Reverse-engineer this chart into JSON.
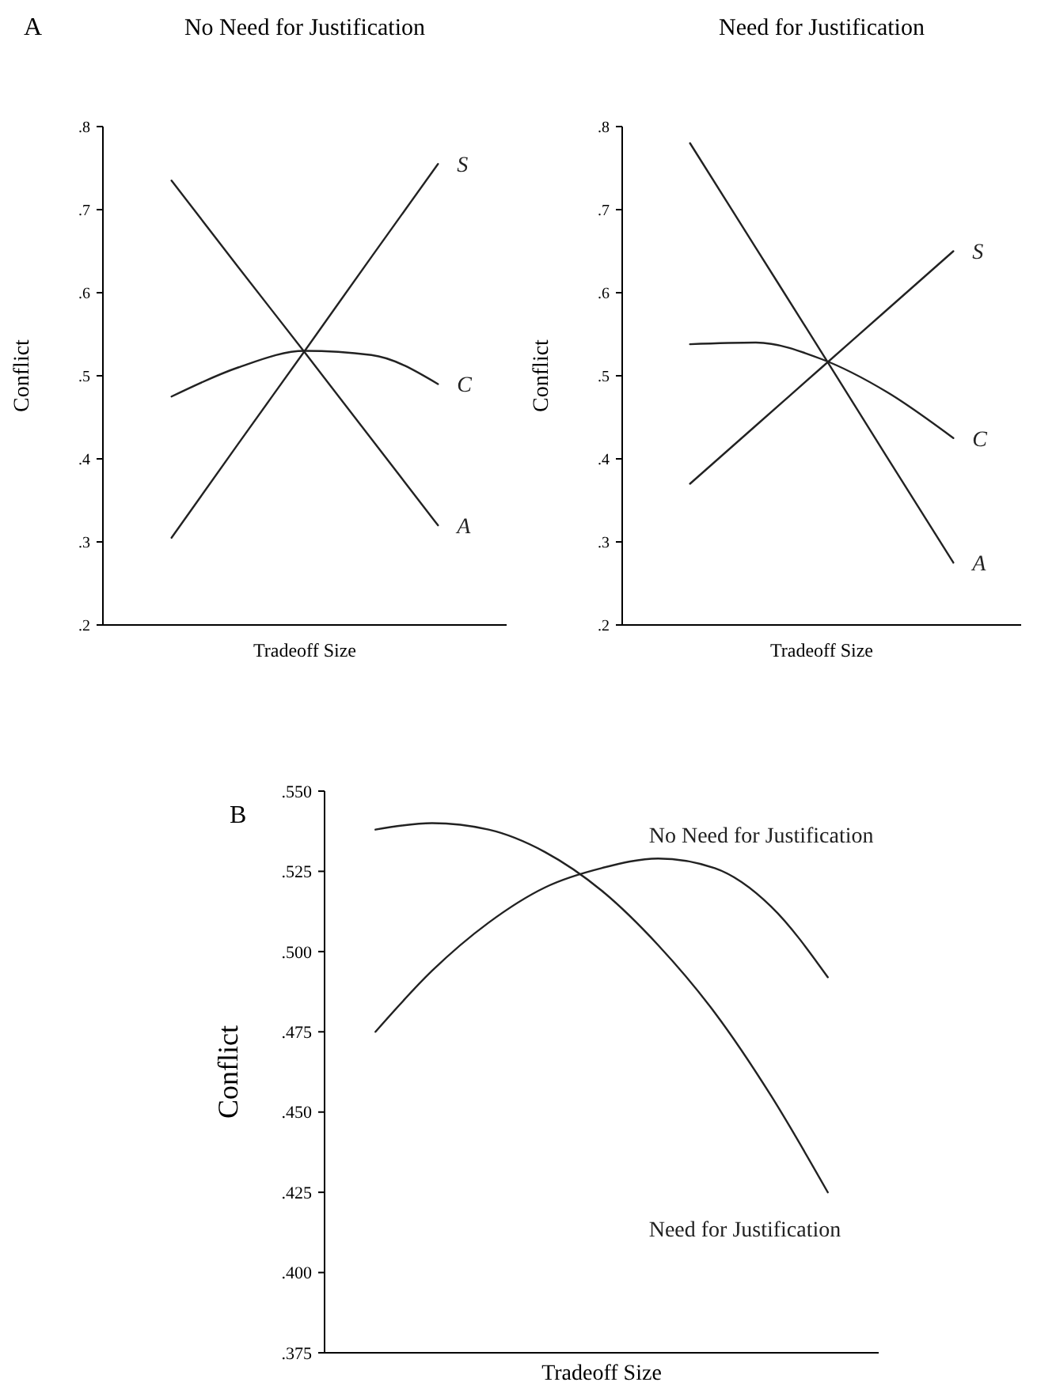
{
  "chart_data": [
    {
      "type": "line",
      "title": "No Need for Justification",
      "xlabel": "Tradeoff Size",
      "ylabel": "Conflict",
      "annotations": [
        "A"
      ],
      "categories": [
        null,
        null,
        null,
        null,
        null
      ],
      "ylim": [
        0.2,
        0.8
      ],
      "yticks": [
        {
          "value": 0.2,
          "label": ".2"
        },
        {
          "value": 0.3,
          "label": ".3"
        },
        {
          "value": 0.4,
          "label": ".4"
        },
        {
          "value": 0.5,
          "label": ".5"
        },
        {
          "value": 0.6,
          "label": ".6"
        },
        {
          "value": 0.7,
          "label": ".7"
        },
        {
          "value": 0.8,
          "label": ".8"
        }
      ],
      "tick_labels": "y",
      "legend": false,
      "grid": false,
      "series": [
        {
          "name": "S",
          "color": "#222222",
          "values": [
            0.305,
            0.418,
            0.53,
            0.643,
            0.755
          ]
        },
        {
          "name": "C",
          "color": "#222222",
          "values": [
            0.475,
            0.51,
            0.53,
            0.525,
            0.49
          ]
        },
        {
          "name": "A",
          "color": "#222222",
          "values": [
            0.735,
            0.631,
            0.528,
            0.424,
            0.32
          ]
        }
      ]
    },
    {
      "type": "line",
      "title": "Need for Justification",
      "xlabel": "Tradeoff Size",
      "ylabel": "Conflict",
      "categories": [
        null,
        null,
        null,
        null,
        null
      ],
      "ylim": [
        0.2,
        0.8
      ],
      "yticks": [
        {
          "value": 0.2,
          "label": ".2"
        },
        {
          "value": 0.3,
          "label": ".3"
        },
        {
          "value": 0.4,
          "label": ".4"
        },
        {
          "value": 0.5,
          "label": ".5"
        },
        {
          "value": 0.6,
          "label": ".6"
        },
        {
          "value": 0.7,
          "label": ".7"
        },
        {
          "value": 0.8,
          "label": ".8"
        }
      ],
      "tick_labels": "y",
      "legend": false,
      "grid": false,
      "series": [
        {
          "name": "S",
          "color": "#222222",
          "values": [
            0.37,
            0.44,
            0.51,
            0.58,
            0.65
          ]
        },
        {
          "name": "C",
          "color": "#222222",
          "values": [
            0.538,
            0.54,
            0.52,
            0.48,
            0.425
          ]
        },
        {
          "name": "A",
          "color": "#222222",
          "values": [
            0.78,
            0.654,
            0.528,
            0.401,
            0.275
          ]
        }
      ]
    },
    {
      "type": "line",
      "xlabel": "Tradeoff Size",
      "ylabel": "Conflict",
      "annotations": [
        "B"
      ],
      "categories": [
        null,
        null,
        null,
        null,
        null,
        null,
        null,
        null,
        null
      ],
      "ylim": [
        0.375,
        0.55
      ],
      "yticks": [
        {
          "value": 0.375,
          "label": ".375"
        },
        {
          "value": 0.4,
          "label": ".400"
        },
        {
          "value": 0.425,
          "label": ".425"
        },
        {
          "value": 0.45,
          "label": ".450"
        },
        {
          "value": 0.475,
          "label": ".475"
        },
        {
          "value": 0.5,
          "label": ".500"
        },
        {
          "value": 0.525,
          "label": ".525"
        },
        {
          "value": 0.55,
          "label": ".550"
        }
      ],
      "tick_labels": "y",
      "legend": false,
      "grid": false,
      "series": [
        {
          "name": "No Need for Justification",
          "color": "#222222",
          "values": [
            0.475,
            0.494,
            0.509,
            0.52,
            0.526,
            0.529,
            0.526,
            0.514,
            0.492
          ]
        },
        {
          "name": "Need for Justification",
          "color": "#222222",
          "values": [
            0.538,
            0.54,
            0.538,
            0.531,
            0.519,
            0.502,
            0.481,
            0.455,
            0.425
          ]
        }
      ]
    }
  ]
}
